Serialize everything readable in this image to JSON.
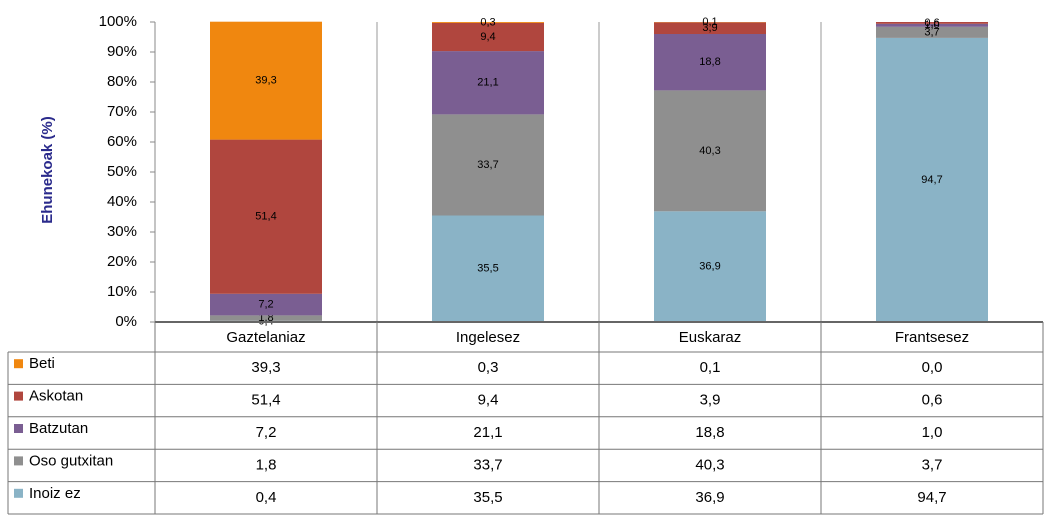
{
  "chart_data": {
    "type": "stacked_bar_table",
    "y_axis_label": "Ehunekoak (%)",
    "categories": [
      "Gaztelaniaz",
      "Ingelesez",
      "Euskaraz",
      "Frantsesez"
    ],
    "series": [
      {
        "name": "Beti",
        "color": "#f0870f",
        "values": [
          39.3,
          0.3,
          0.1,
          0.0
        ],
        "value_labels": [
          "39,3",
          "0,3",
          "0,1",
          "0,0"
        ]
      },
      {
        "name": "Askotan",
        "color": "#b0463e",
        "values": [
          51.4,
          9.4,
          3.9,
          0.6
        ],
        "value_labels": [
          "51,4",
          "9,4",
          "3,9",
          "0,6"
        ]
      },
      {
        "name": "Batzutan",
        "color": "#7a5e92",
        "values": [
          7.2,
          21.1,
          18.8,
          1.0
        ],
        "value_labels": [
          "7,2",
          "21,1",
          "18,8",
          "1,0"
        ]
      },
      {
        "name": "Oso gutxitan",
        "color": "#8f8f8f",
        "values": [
          1.8,
          33.7,
          40.3,
          3.7
        ],
        "value_labels": [
          "1,8",
          "33,7",
          "40,3",
          "3,7"
        ]
      },
      {
        "name": "Inoiz ez",
        "color": "#8ab3c6",
        "values": [
          0.4,
          35.5,
          36.9,
          94.7
        ],
        "value_labels": [
          "0,4",
          "35,5",
          "36,9",
          "94,7"
        ]
      }
    ],
    "ylim": [
      0,
      100
    ],
    "yticks": [
      {
        "value": 0,
        "label": "0%"
      },
      {
        "value": 10,
        "label": "10%"
      },
      {
        "value": 20,
        "label": "20%"
      },
      {
        "value": 30,
        "label": "30%"
      },
      {
        "value": 40,
        "label": "40%"
      },
      {
        "value": 50,
        "label": "50%"
      },
      {
        "value": 60,
        "label": "60%"
      },
      {
        "value": 70,
        "label": "70%"
      },
      {
        "value": 80,
        "label": "80%"
      },
      {
        "value": 90,
        "label": "90%"
      },
      {
        "value": 100,
        "label": "100%"
      }
    ]
  }
}
